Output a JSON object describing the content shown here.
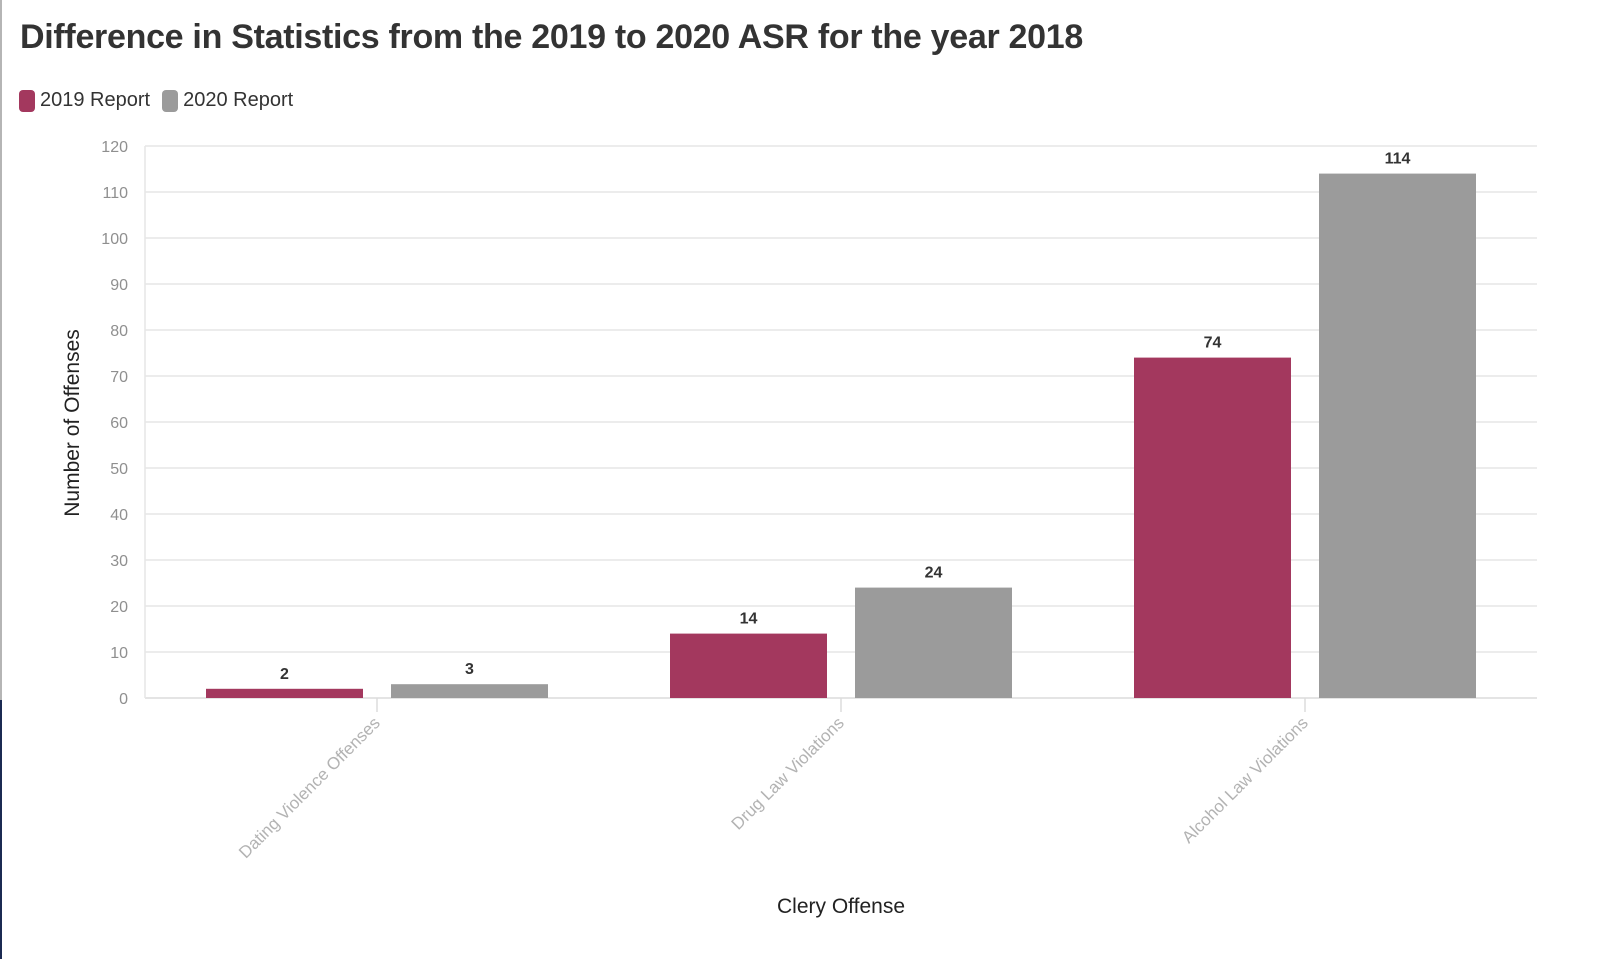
{
  "title": "Difference in Statistics from the 2019 to 2020 ASR for the year 2018",
  "colors": {
    "series_2019": "#a3385e",
    "series_2020": "#9b9b9b",
    "grid": "#e6e6e6",
    "axis": "#dcdcdc"
  },
  "chart_data": {
    "type": "bar",
    "title": "Difference in Statistics from the 2019 to 2020 ASR for the year 2018",
    "xlabel": "Clery Offense",
    "ylabel": "Number of Offenses",
    "categories": [
      "Dating Violence Offenses",
      "Drug Law Violations",
      "Alcohol Law Violations"
    ],
    "series": [
      {
        "name": "2019 Report",
        "values": [
          2,
          14,
          74
        ]
      },
      {
        "name": "2020 Report",
        "values": [
          3,
          24,
          114
        ]
      }
    ],
    "ylim": [
      0,
      120
    ],
    "yticks": [
      0,
      10,
      20,
      30,
      40,
      50,
      60,
      70,
      80,
      90,
      100,
      110,
      120
    ],
    "grid": true,
    "legend": "top-left",
    "data_labels": true
  }
}
